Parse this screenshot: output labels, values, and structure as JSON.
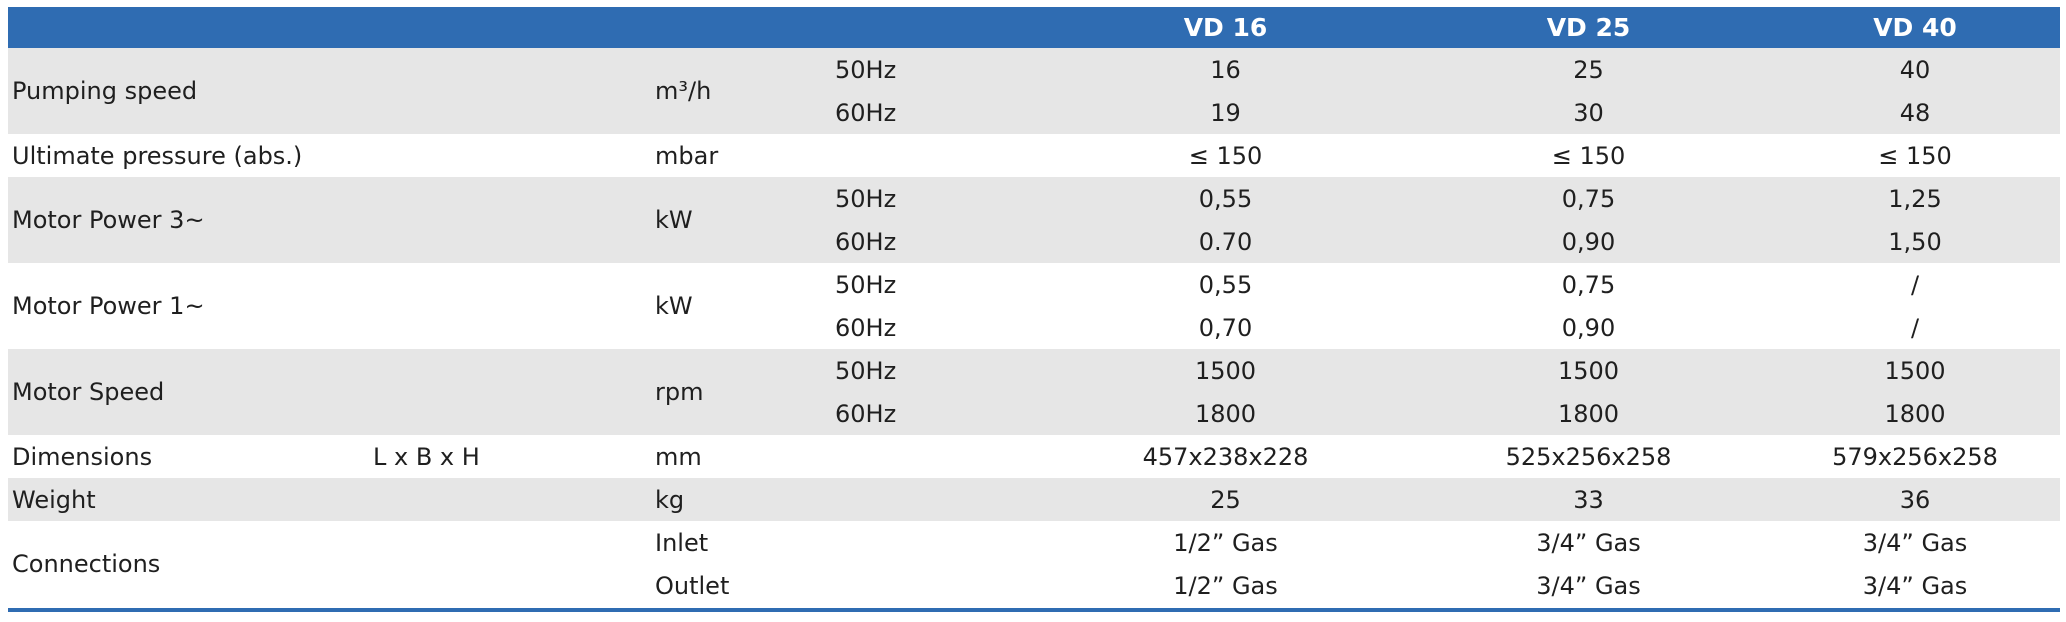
{
  "header": {
    "models": [
      "VD 16",
      "VD 25",
      "VD 40"
    ]
  },
  "rows": [
    {
      "param": "Pumping speed",
      "sub": "",
      "unit": "m³/h",
      "lines": [
        {
          "freq": "50Hz",
          "values": [
            "16",
            "25",
            "40"
          ]
        },
        {
          "freq": "60Hz",
          "values": [
            "19",
            "30",
            "48"
          ]
        }
      ]
    },
    {
      "param": "Ultimate pressure (abs.)",
      "sub": "",
      "unit": "mbar",
      "lines": [
        {
          "freq": "",
          "values": [
            "≤ 150",
            "≤ 150",
            "≤ 150"
          ]
        }
      ]
    },
    {
      "param": "Motor Power 3~",
      "sub": "",
      "unit": "kW",
      "lines": [
        {
          "freq": "50Hz",
          "values": [
            "0,55",
            "0,75",
            "1,25"
          ]
        },
        {
          "freq": "60Hz",
          "values": [
            "0.70",
            "0,90",
            "1,50"
          ]
        }
      ]
    },
    {
      "param": "Motor Power 1~",
      "sub": "",
      "unit": "kW",
      "lines": [
        {
          "freq": "50Hz",
          "values": [
            "0,55",
            "0,75",
            "/"
          ]
        },
        {
          "freq": "60Hz",
          "values": [
            "0,70",
            "0,90",
            "/"
          ]
        }
      ]
    },
    {
      "param": "Motor Speed",
      "sub": "",
      "unit": "rpm",
      "lines": [
        {
          "freq": "50Hz",
          "values": [
            "1500",
            "1500",
            "1500"
          ]
        },
        {
          "freq": "60Hz",
          "values": [
            "1800",
            "1800",
            "1800"
          ]
        }
      ]
    },
    {
      "param": "Dimensions",
      "sub": "L x B x H",
      "unit": "mm",
      "lines": [
        {
          "freq": "",
          "values": [
            "457x238x228",
            "525x256x258",
            "579x256x258"
          ]
        }
      ]
    },
    {
      "param": "Weight",
      "sub": "",
      "unit": "kg",
      "lines": [
        {
          "freq": "",
          "values": [
            "25",
            "33",
            "36"
          ]
        }
      ]
    },
    {
      "param": "Connections",
      "sub": "",
      "unit": "",
      "lines": [
        {
          "freq": "",
          "label": "Inlet",
          "values": [
            "1/2” Gas",
            "3/4” Gas",
            "3/4” Gas"
          ]
        },
        {
          "freq": "",
          "label": "Outlet",
          "values": [
            "1/2” Gas",
            "3/4” Gas",
            "3/4” Gas"
          ]
        }
      ]
    }
  ],
  "colors": {
    "header_bg": "#2f6cb2",
    "header_text": "#ffffff",
    "shade_row": "#e6e6e6",
    "plain_row": "#ffffff"
  }
}
